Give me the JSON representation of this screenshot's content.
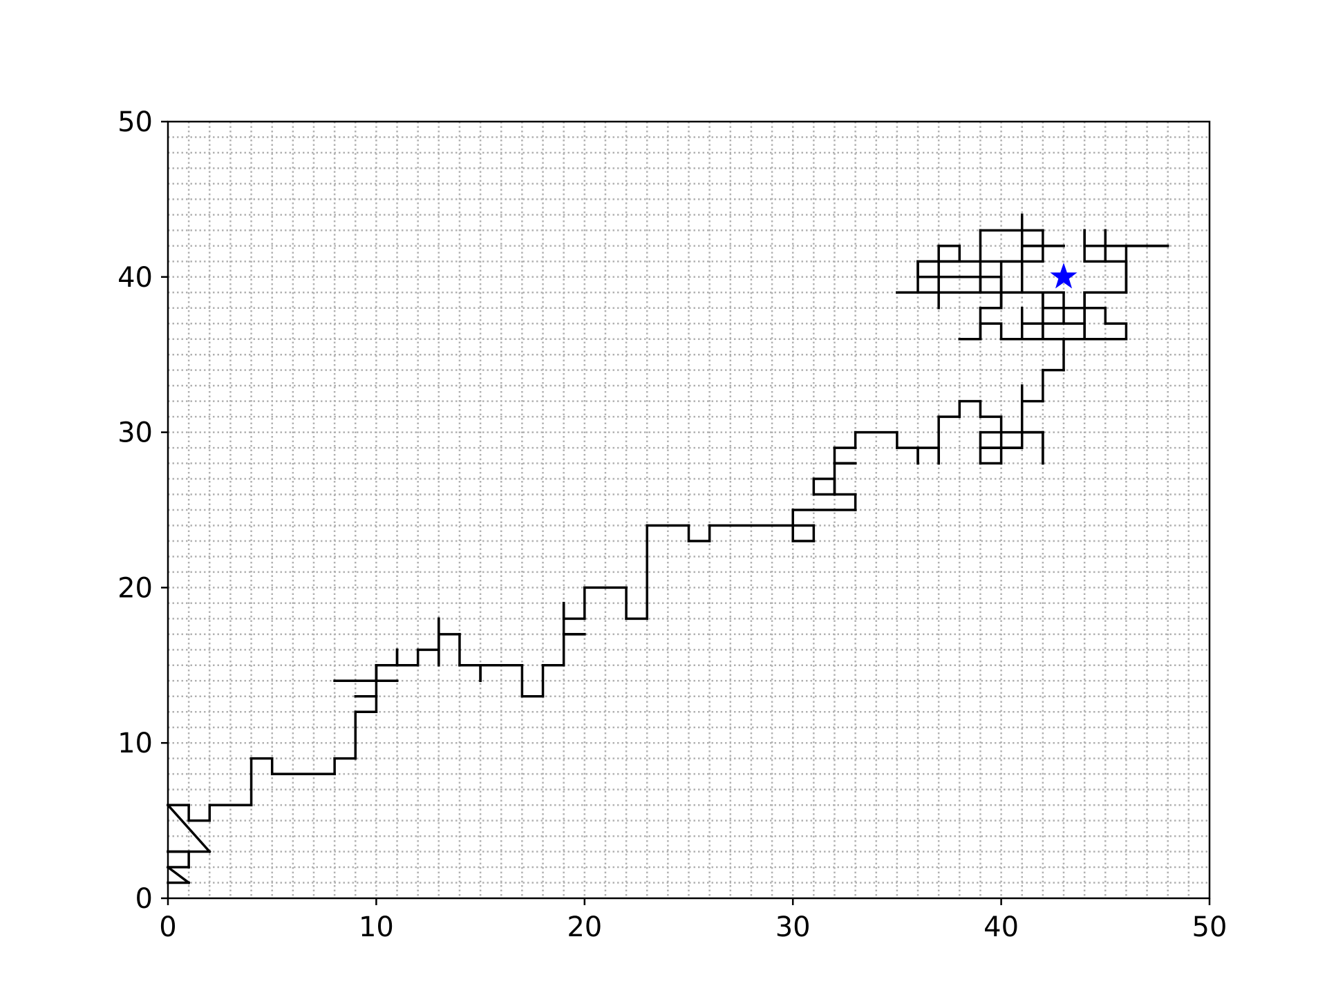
{
  "chart_data": {
    "type": "line",
    "title": "",
    "xlabel": "",
    "ylabel": "",
    "xlim": [
      0,
      50
    ],
    "ylim": [
      0,
      50
    ],
    "grid": true,
    "grid_style": "dotted",
    "x_ticks": [
      "0",
      "10",
      "20",
      "30",
      "40",
      "50"
    ],
    "y_ticks": [
      "0",
      "10",
      "20",
      "30",
      "40",
      "50"
    ],
    "colors": {
      "path": "#000000",
      "marker": "#0000ff",
      "grid": "#b0b0b0"
    },
    "series": [
      {
        "points": [
          [
            0,
            1
          ],
          [
            1,
            1
          ],
          [
            0,
            2
          ],
          [
            1,
            2
          ],
          [
            1,
            3
          ],
          [
            0,
            3
          ],
          [
            2,
            3
          ],
          [
            0,
            6
          ],
          [
            1,
            6
          ],
          [
            1,
            5
          ],
          [
            2,
            5
          ],
          [
            2,
            6
          ],
          [
            4,
            6
          ],
          [
            4,
            9
          ],
          [
            5,
            9
          ],
          [
            5,
            8
          ],
          [
            8,
            8
          ],
          [
            8,
            9
          ],
          [
            9,
            9
          ],
          [
            9,
            12
          ],
          [
            10,
            12
          ],
          [
            10,
            13
          ],
          [
            9,
            13
          ],
          [
            10,
            13
          ],
          [
            10,
            15
          ],
          [
            10,
            14
          ],
          [
            8,
            14
          ],
          [
            11,
            14
          ],
          [
            10,
            14
          ],
          [
            10,
            15
          ],
          [
            11,
            15
          ],
          [
            11,
            16
          ],
          [
            11,
            15
          ],
          [
            12,
            15
          ],
          [
            12,
            16
          ],
          [
            13,
            16
          ],
          [
            13,
            18
          ],
          [
            13,
            15
          ],
          [
            13,
            17
          ],
          [
            14,
            17
          ],
          [
            14,
            15
          ],
          [
            15,
            15
          ],
          [
            15,
            14
          ],
          [
            15,
            15
          ],
          [
            17,
            15
          ],
          [
            17,
            13
          ],
          [
            18,
            13
          ],
          [
            18,
            15
          ],
          [
            19,
            15
          ],
          [
            19,
            17
          ],
          [
            20,
            17
          ],
          [
            19,
            17
          ],
          [
            19,
            19
          ],
          [
            19,
            18
          ],
          [
            20,
            18
          ],
          [
            20,
            20
          ],
          [
            22,
            20
          ],
          [
            22,
            18
          ],
          [
            23,
            18
          ],
          [
            23,
            24
          ],
          [
            25,
            24
          ],
          [
            25,
            23
          ],
          [
            26,
            23
          ],
          [
            26,
            24
          ],
          [
            31,
            24
          ],
          [
            31,
            23
          ],
          [
            30,
            23
          ],
          [
            30,
            25
          ],
          [
            33,
            25
          ],
          [
            33,
            26
          ],
          [
            32,
            26
          ],
          [
            32,
            27
          ],
          [
            31,
            27
          ],
          [
            31,
            26
          ],
          [
            32,
            26
          ],
          [
            32,
            28
          ],
          [
            33,
            28
          ],
          [
            32,
            28
          ],
          [
            32,
            29
          ],
          [
            33,
            29
          ],
          [
            33,
            30
          ],
          [
            35,
            30
          ],
          [
            35,
            29
          ],
          [
            36,
            29
          ],
          [
            36,
            28
          ],
          [
            36,
            29
          ],
          [
            37,
            29
          ],
          [
            37,
            28
          ],
          [
            37,
            31
          ],
          [
            38,
            31
          ],
          [
            38,
            32
          ],
          [
            39,
            32
          ],
          [
            39,
            31
          ],
          [
            40,
            31
          ],
          [
            40,
            28
          ],
          [
            39,
            28
          ],
          [
            39,
            30
          ],
          [
            41,
            30
          ],
          [
            41,
            29
          ],
          [
            39,
            29
          ],
          [
            41,
            29
          ],
          [
            41,
            30
          ],
          [
            42,
            30
          ],
          [
            42,
            28
          ],
          [
            42,
            30
          ],
          [
            41,
            30
          ],
          [
            41,
            33
          ],
          [
            41,
            32
          ],
          [
            42,
            32
          ],
          [
            42,
            34
          ],
          [
            43,
            34
          ],
          [
            43,
            36
          ],
          [
            40,
            36
          ],
          [
            40,
            37
          ],
          [
            39,
            37
          ],
          [
            39,
            36
          ],
          [
            38,
            36
          ],
          [
            39,
            36
          ],
          [
            39,
            38
          ],
          [
            40,
            38
          ],
          [
            40,
            39
          ],
          [
            43,
            39
          ],
          [
            43,
            37
          ],
          [
            44,
            37
          ],
          [
            44,
            39
          ],
          [
            46,
            39
          ],
          [
            46,
            41
          ],
          [
            45,
            41
          ],
          [
            45,
            43
          ],
          [
            45,
            41
          ],
          [
            44,
            41
          ],
          [
            44,
            43
          ],
          [
            44,
            42
          ],
          [
            48,
            42
          ],
          [
            46,
            42
          ],
          [
            46,
            39
          ],
          [
            44,
            39
          ],
          [
            44,
            38
          ],
          [
            45,
            38
          ],
          [
            45,
            37
          ],
          [
            46,
            37
          ],
          [
            46,
            36
          ],
          [
            41,
            36
          ],
          [
            41,
            37
          ],
          [
            41,
            38
          ],
          [
            41,
            37
          ],
          [
            42,
            37
          ],
          [
            42,
            39
          ],
          [
            42,
            38
          ],
          [
            44,
            38
          ],
          [
            44,
            36
          ],
          [
            44,
            37
          ],
          [
            42,
            37
          ],
          [
            42,
            36
          ],
          [
            42,
            39
          ],
          [
            39,
            39
          ],
          [
            39,
            40
          ],
          [
            40,
            40
          ],
          [
            40,
            39
          ],
          [
            41,
            39
          ],
          [
            41,
            42
          ],
          [
            43,
            42
          ],
          [
            41,
            42
          ],
          [
            41,
            44
          ],
          [
            41,
            43
          ],
          [
            42,
            43
          ],
          [
            42,
            41
          ],
          [
            36,
            41
          ],
          [
            36,
            40
          ],
          [
            37,
            40
          ],
          [
            37,
            42
          ],
          [
            38,
            42
          ],
          [
            38,
            41
          ],
          [
            36,
            41
          ],
          [
            36,
            39
          ],
          [
            35,
            39
          ],
          [
            39,
            39
          ],
          [
            39,
            43
          ],
          [
            41,
            43
          ],
          [
            41,
            40
          ],
          [
            41,
            41
          ],
          [
            40,
            41
          ],
          [
            40,
            38
          ],
          [
            40,
            40
          ],
          [
            37,
            40
          ],
          [
            37,
            38
          ]
        ]
      }
    ],
    "markers": [
      {
        "x": 43,
        "y": 40,
        "shape": "star"
      }
    ]
  }
}
